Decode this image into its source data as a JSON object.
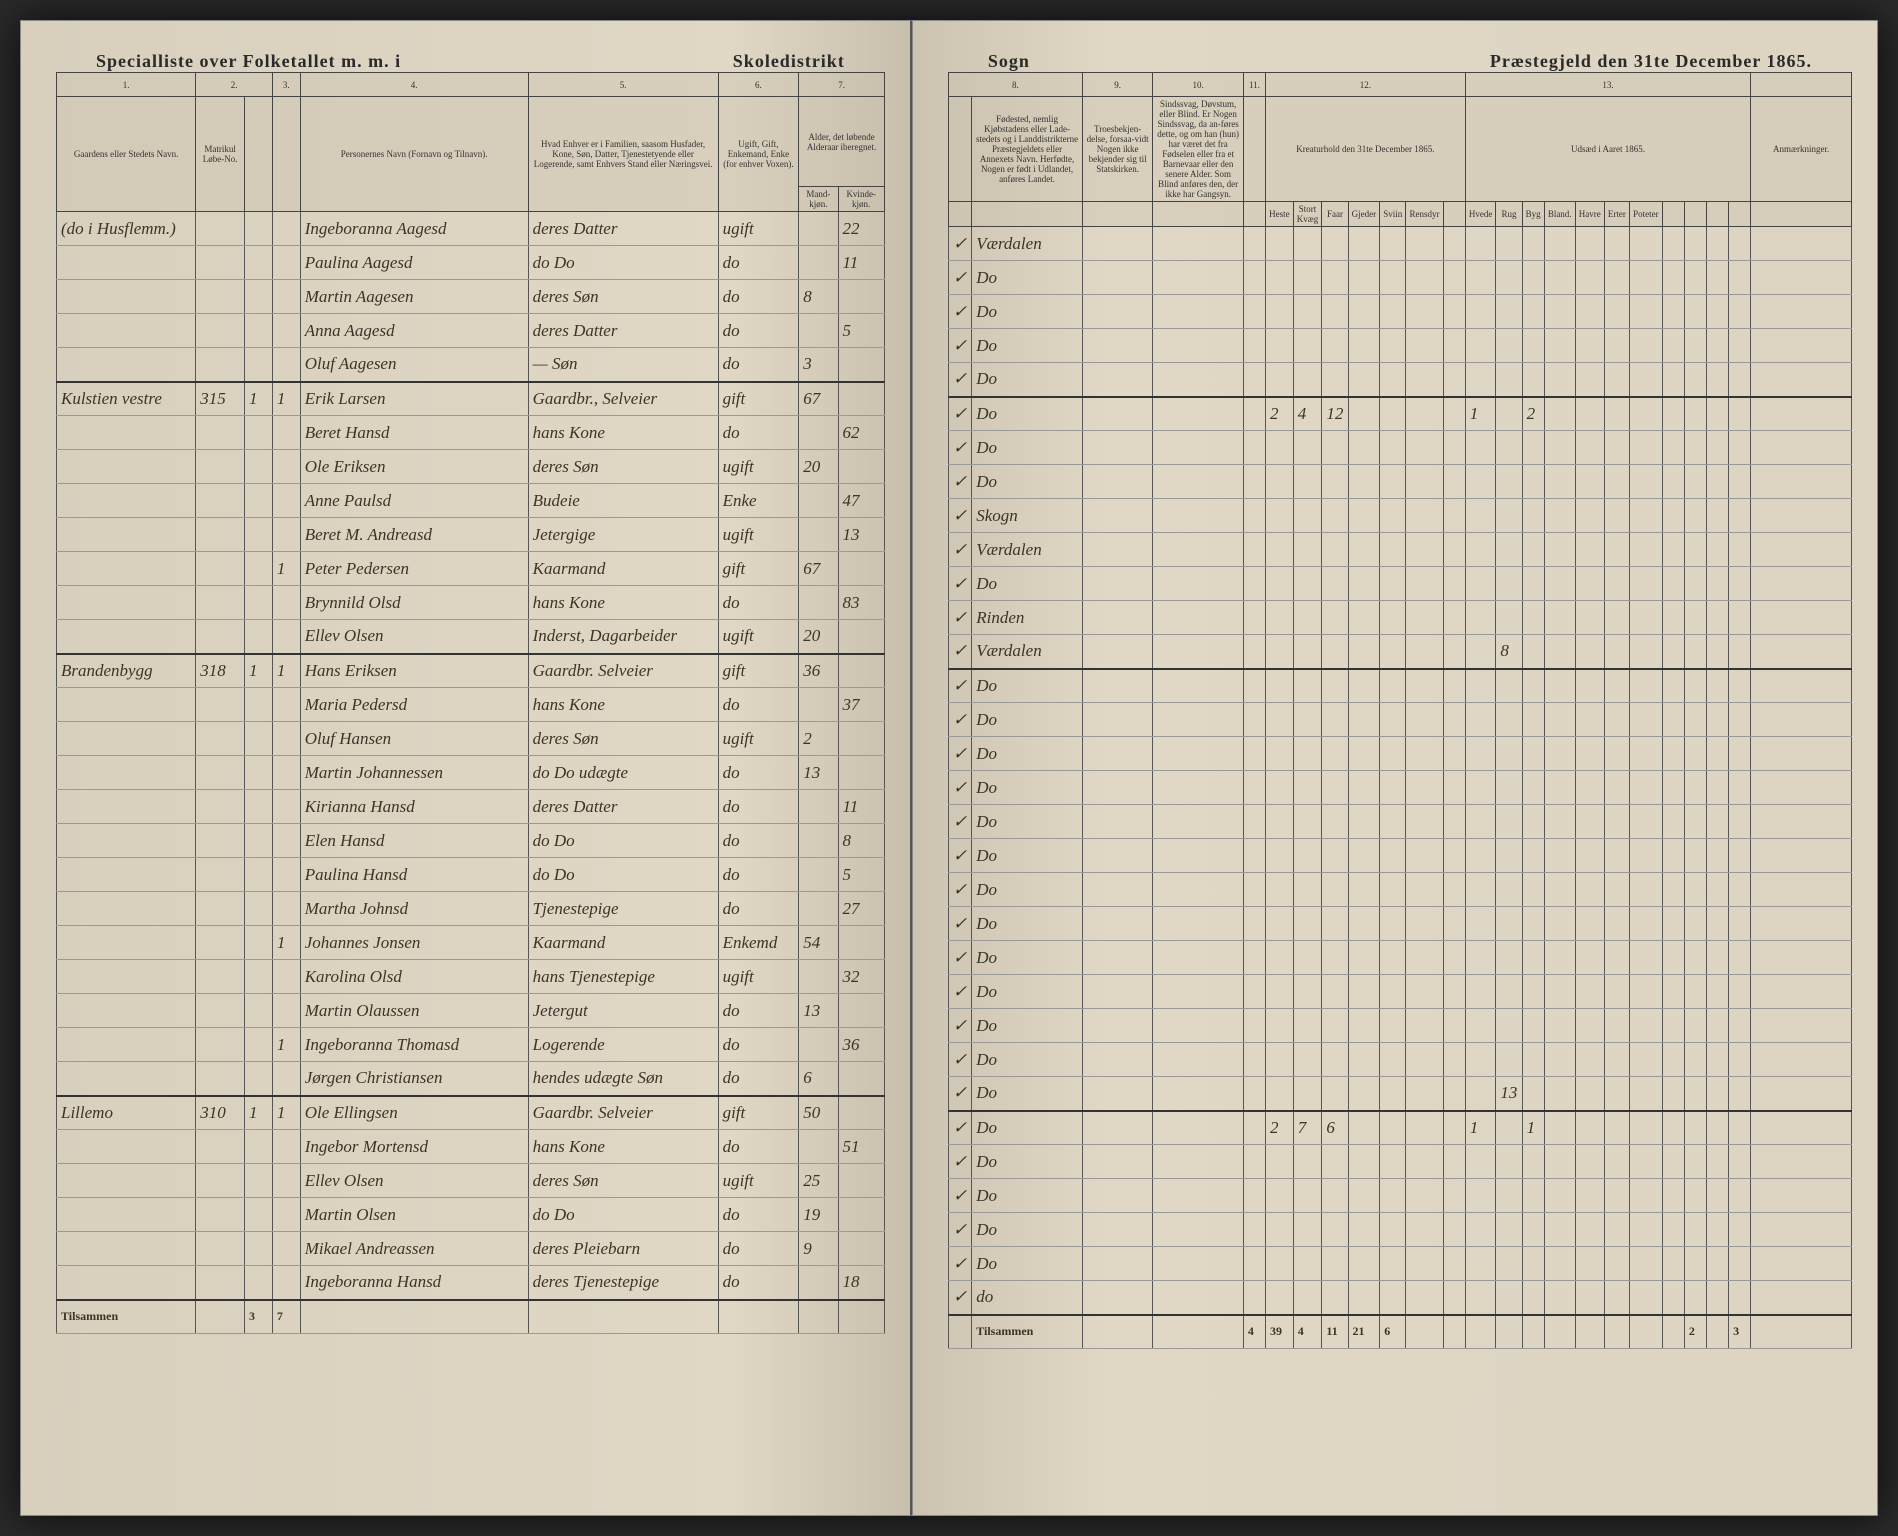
{
  "header": {
    "left_title_1": "Specialliste over Folketallet m. m. i",
    "left_title_2": "Skoledistrikt",
    "right_title_1": "Sogn",
    "right_title_2": "Præstegjeld den 31te December 1865."
  },
  "columns_left": {
    "c1": "1.",
    "c2": "2.",
    "c3": "3.",
    "c4": "4.",
    "c5": "5.",
    "c6": "6.",
    "c7": "7.",
    "h1": "Gaardens eller Stedets Navn.",
    "h2a": "Matrikul Løbe-No.",
    "h4": "Personernes Navn (Fornavn og Tilnavn).",
    "h5": "Hvad Enhver er i Familien, saasom Husfader, Kone, Søn, Datter, Tjenestetyende eller Logerende, samt Enhvers Stand eller Næringsvei.",
    "h6": "Ugift, Gift, Enkemand, Enke (for enhver Voxen).",
    "h7": "Alder, det løbende Alderaar iberegnet.",
    "h7a": "Mand-kjøn.",
    "h7b": "Kvinde-kjøn."
  },
  "columns_right": {
    "c8": "8.",
    "c9": "9.",
    "c10": "10.",
    "c11": "11.",
    "c12": "12.",
    "c13": "13.",
    "h8": "Fødested, nemlig Kjøbstadens eller Lade-stedets og i Landdistrikterne Præstegjeldets eller Annexets Navn. Herfødte, Nogen er født i Udlandet, anføres Landet.",
    "h9": "Troesbekjen-delse, forsaa-vidt Nogen ikke bekjender sig til Statskirken.",
    "h10": "Sindssvag, Døvstum, eller Blind. Er Nogen Sindssvag, da an-føres dette, og om han (hun) har været det fra Fødselen eller fra et Barnevaar eller den senere Alder. Som Blind anføres den, der ikke har Gangsyn.",
    "h12": "Kreaturhold den 31te December 1865.",
    "h13": "Udsæd i Aaret 1865.",
    "h14": "Anmærkninger."
  },
  "rows": [
    {
      "place": "(do i Husflemm.)",
      "mat": "",
      "h": "",
      "p": "",
      "name": "Ingeboranna Aagesd",
      "rel": "deres Datter",
      "status": "ugift",
      "age_m": "",
      "age_f": "22",
      "birthplace": "Værdalen"
    },
    {
      "place": "",
      "mat": "",
      "h": "",
      "p": "",
      "name": "Paulina Aagesd",
      "rel": "do Do",
      "status": "do",
      "age_m": "",
      "age_f": "11",
      "birthplace": "Do"
    },
    {
      "place": "",
      "mat": "",
      "h": "",
      "p": "",
      "name": "Martin Aagesen",
      "rel": "deres Søn",
      "status": "do",
      "age_m": "8",
      "age_f": "",
      "birthplace": "Do"
    },
    {
      "place": "",
      "mat": "",
      "h": "",
      "p": "",
      "name": "Anna Aagesd",
      "rel": "deres Datter",
      "status": "do",
      "age_m": "",
      "age_f": "5",
      "birthplace": "Do"
    },
    {
      "place": "",
      "mat": "",
      "h": "",
      "p": "",
      "name": "Oluf Aagesen",
      "rel": "— Søn",
      "status": "do",
      "age_m": "3",
      "age_f": "",
      "birthplace": "Do"
    },
    {
      "place": "Kulstien vestre",
      "mat": "315",
      "h": "1",
      "p": "1",
      "name": "Erik Larsen",
      "rel": "Gaardbr., Selveier",
      "status": "gift",
      "age_m": "67",
      "age_f": "",
      "birthplace": "Do",
      "livestock": [
        "2",
        "4",
        "12",
        "",
        "",
        "",
        "",
        "1",
        "",
        "2"
      ]
    },
    {
      "place": "",
      "mat": "",
      "h": "",
      "p": "",
      "name": "Beret Hansd",
      "rel": "hans Kone",
      "status": "do",
      "age_m": "",
      "age_f": "62",
      "birthplace": "Do"
    },
    {
      "place": "",
      "mat": "",
      "h": "",
      "p": "",
      "name": "Ole Eriksen",
      "rel": "deres Søn",
      "status": "ugift",
      "age_m": "20",
      "age_f": "",
      "birthplace": "Do"
    },
    {
      "place": "",
      "mat": "",
      "h": "",
      "p": "",
      "name": "Anne Paulsd",
      "rel": "Budeie",
      "status": "Enke",
      "age_m": "",
      "age_f": "47",
      "birthplace": "Skogn"
    },
    {
      "place": "",
      "mat": "",
      "h": "",
      "p": "",
      "name": "Beret M. Andreasd",
      "rel": "Jetergige",
      "status": "ugift",
      "age_m": "",
      "age_f": "13",
      "birthplace": "Værdalen"
    },
    {
      "place": "",
      "mat": "",
      "h": "",
      "p": "1",
      "name": "Peter Pedersen",
      "rel": "Kaarmand",
      "status": "gift",
      "age_m": "67",
      "age_f": "",
      "birthplace": "Do"
    },
    {
      "place": "",
      "mat": "",
      "h": "",
      "p": "",
      "name": "Brynnild Olsd",
      "rel": "hans Kone",
      "status": "do",
      "age_m": "",
      "age_f": "83",
      "birthplace": "Rinden"
    },
    {
      "place": "",
      "mat": "",
      "h": "",
      "p": "",
      "name": "Ellev Olsen",
      "rel": "Inderst, Dagarbeider",
      "status": "ugift",
      "age_m": "20",
      "age_f": "",
      "birthplace": "Værdalen",
      "livestock": [
        "",
        "",
        "",
        "",
        "",
        "",
        "",
        "",
        "8",
        ""
      ]
    },
    {
      "place": "Brandenbygg",
      "mat": "318",
      "h": "1",
      "p": "1",
      "name": "Hans Eriksen",
      "rel": "Gaardbr. Selveier",
      "status": "gift",
      "age_m": "36",
      "age_f": "",
      "birthplace": "Do"
    },
    {
      "place": "",
      "mat": "",
      "h": "",
      "p": "",
      "name": "Maria Pedersd",
      "rel": "hans Kone",
      "status": "do",
      "age_m": "",
      "age_f": "37",
      "birthplace": "Do"
    },
    {
      "place": "",
      "mat": "",
      "h": "",
      "p": "",
      "name": "Oluf Hansen",
      "rel": "deres Søn",
      "status": "ugift",
      "age_m": "2",
      "age_f": "",
      "birthplace": "Do"
    },
    {
      "place": "",
      "mat": "",
      "h": "",
      "p": "",
      "name": "Martin Johannessen",
      "rel": "do Do udægte",
      "status": "do",
      "age_m": "13",
      "age_f": "",
      "birthplace": "Do"
    },
    {
      "place": "",
      "mat": "",
      "h": "",
      "p": "",
      "name": "Kirianna Hansd",
      "rel": "deres Datter",
      "status": "do",
      "age_m": "",
      "age_f": "11",
      "birthplace": "Do"
    },
    {
      "place": "",
      "mat": "",
      "h": "",
      "p": "",
      "name": "Elen Hansd",
      "rel": "do Do",
      "status": "do",
      "age_m": "",
      "age_f": "8",
      "birthplace": "Do"
    },
    {
      "place": "",
      "mat": "",
      "h": "",
      "p": "",
      "name": "Paulina Hansd",
      "rel": "do Do",
      "status": "do",
      "age_m": "",
      "age_f": "5",
      "birthplace": "Do"
    },
    {
      "place": "",
      "mat": "",
      "h": "",
      "p": "",
      "name": "Martha Johnsd",
      "rel": "Tjenestepige",
      "status": "do",
      "age_m": "",
      "age_f": "27",
      "birthplace": "Do"
    },
    {
      "place": "",
      "mat": "",
      "h": "",
      "p": "1",
      "name": "Johannes Jonsen",
      "rel": "Kaarmand",
      "status": "Enkemd",
      "age_m": "54",
      "age_f": "",
      "birthplace": "Do"
    },
    {
      "place": "",
      "mat": "",
      "h": "",
      "p": "",
      "name": "Karolina Olsd",
      "rel": "hans Tjenestepige",
      "status": "ugift",
      "age_m": "",
      "age_f": "32",
      "birthplace": "Do"
    },
    {
      "place": "",
      "mat": "",
      "h": "",
      "p": "",
      "name": "Martin Olaussen",
      "rel": "Jetergut",
      "status": "do",
      "age_m": "13",
      "age_f": "",
      "birthplace": "Do"
    },
    {
      "place": "",
      "mat": "",
      "h": "",
      "p": "1",
      "name": "Ingeboranna Thomasd",
      "rel": "Logerende",
      "status": "do",
      "age_m": "",
      "age_f": "36",
      "birthplace": "Do"
    },
    {
      "place": "",
      "mat": "",
      "h": "",
      "p": "",
      "name": "Jørgen Christiansen",
      "rel": "hendes udægte Søn",
      "status": "do",
      "age_m": "6",
      "age_f": "",
      "birthplace": "Do",
      "livestock": [
        "",
        "",
        "",
        "",
        "",
        "",
        "",
        "",
        "13",
        ""
      ]
    },
    {
      "place": "Lillemo",
      "mat": "310",
      "h": "1",
      "p": "1",
      "name": "Ole Ellingsen",
      "rel": "Gaardbr. Selveier",
      "status": "gift",
      "age_m": "50",
      "age_f": "",
      "birthplace": "Do",
      "livestock": [
        "2",
        "7",
        "6",
        "",
        "",
        "",
        "",
        "1",
        "",
        "1"
      ]
    },
    {
      "place": "",
      "mat": "",
      "h": "",
      "p": "",
      "name": "Ingebor Mortensd",
      "rel": "hans Kone",
      "status": "do",
      "age_m": "",
      "age_f": "51",
      "birthplace": "Do"
    },
    {
      "place": "",
      "mat": "",
      "h": "",
      "p": "",
      "name": "Ellev Olsen",
      "rel": "deres Søn",
      "status": "ugift",
      "age_m": "25",
      "age_f": "",
      "birthplace": "Do"
    },
    {
      "place": "",
      "mat": "",
      "h": "",
      "p": "",
      "name": "Martin Olsen",
      "rel": "do Do",
      "status": "do",
      "age_m": "19",
      "age_f": "",
      "birthplace": "Do"
    },
    {
      "place": "",
      "mat": "",
      "h": "",
      "p": "",
      "name": "Mikael Andreassen",
      "rel": "deres Pleiebarn",
      "status": "do",
      "age_m": "9",
      "age_f": "",
      "birthplace": "Do"
    },
    {
      "place": "",
      "mat": "",
      "h": "",
      "p": "",
      "name": "Ingeboranna Hansd",
      "rel": "deres Tjenestepige",
      "status": "do",
      "age_m": "",
      "age_f": "18",
      "birthplace": "do"
    }
  ],
  "footer": {
    "label": "Tilsammen",
    "left_h": "3",
    "left_p": "7",
    "totals": [
      "4",
      "",
      "",
      "",
      "",
      "",
      "",
      "",
      "",
      "",
      "",
      "",
      "",
      "",
      "",
      "",
      "",
      "",
      ""
    ],
    "right_totals": [
      "39",
      "4",
      "11",
      "21",
      "6",
      "",
      "",
      "",
      "",
      "",
      "2",
      "",
      "3"
    ]
  }
}
